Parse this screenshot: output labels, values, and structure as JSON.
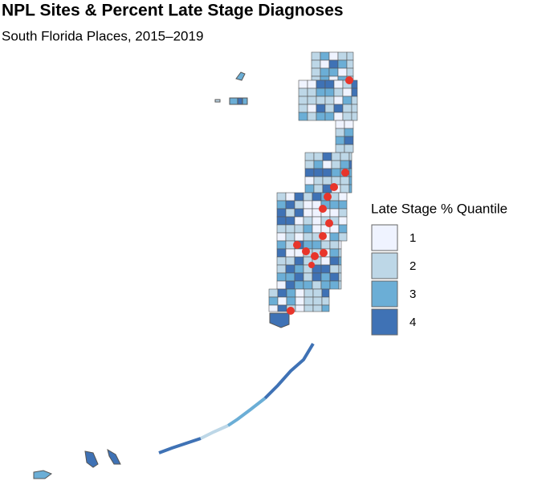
{
  "header": {
    "title": "NPL Sites & Percent Late Stage Diagnoses",
    "subtitle": "South Florida Places, 2015–2019"
  },
  "legend": {
    "title": "Late Stage % Quantile",
    "items": [
      {
        "label": "1",
        "color": "#eff3ff"
      },
      {
        "label": "2",
        "color": "#bdd7e7"
      },
      {
        "label": "3",
        "color": "#6baed6"
      },
      {
        "label": "4",
        "color": "#3f72b5"
      }
    ]
  }
}
